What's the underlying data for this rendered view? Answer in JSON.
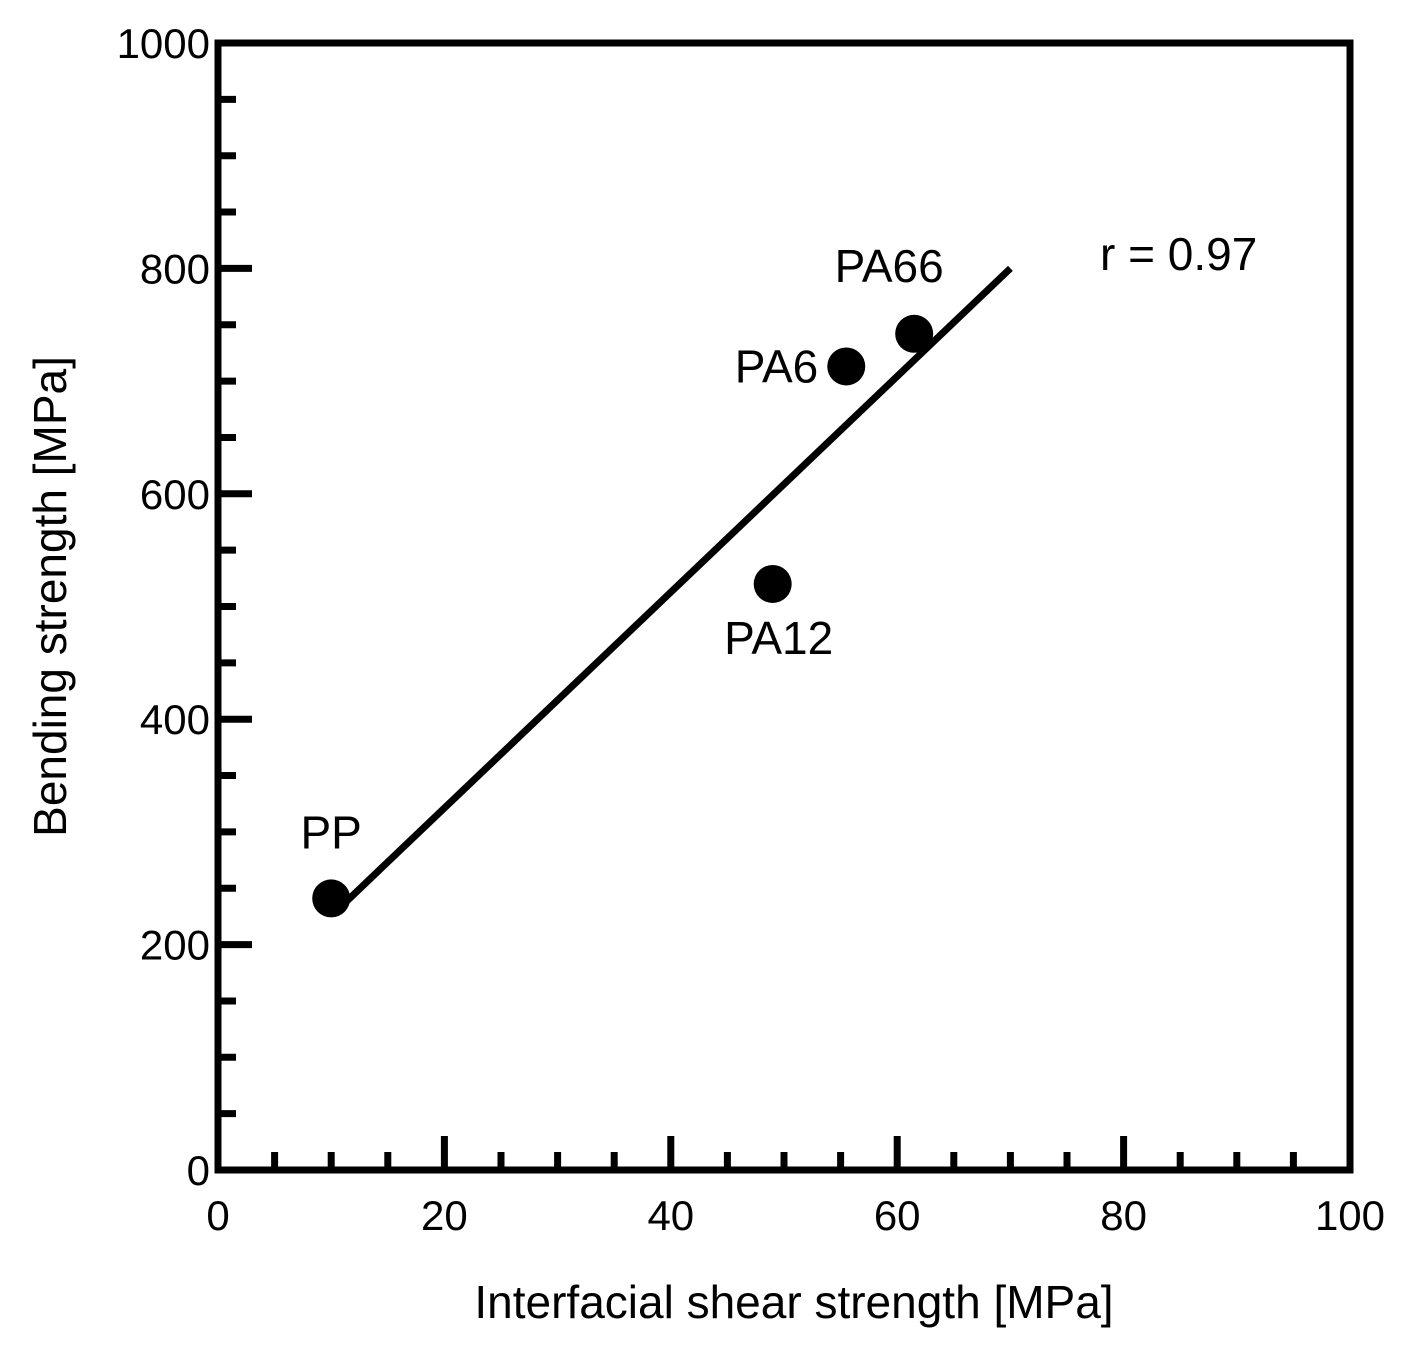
{
  "chart_data": {
    "type": "scatter",
    "title": "",
    "xlabel": "Interfacial shear strength [MPa]",
    "ylabel": "Bending strength [MPa]",
    "xlim": [
      0,
      100
    ],
    "ylim": [
      0,
      1000
    ],
    "xticks": [
      0,
      20,
      40,
      60,
      80,
      100
    ],
    "yticks": [
      0,
      200,
      400,
      600,
      800,
      1000
    ],
    "x_minor_step": 5,
    "y_minor_step": 50,
    "grid": false,
    "legend": "none",
    "points": [
      {
        "label": "PP",
        "x": 10,
        "y": 241
      },
      {
        "label": "PA12",
        "x": 49,
        "y": 520
      },
      {
        "label": "PA6",
        "x": 55.5,
        "y": 713
      },
      {
        "label": "PA66",
        "x": 61.5,
        "y": 742
      }
    ],
    "fit_line": {
      "x": [
        11,
        70
      ],
      "y": [
        235,
        800
      ]
    },
    "annotation": "r = 0.97"
  }
}
